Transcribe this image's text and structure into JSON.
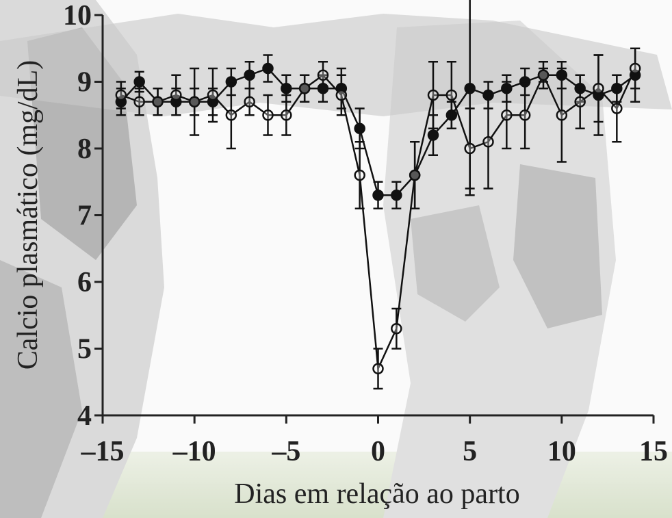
{
  "chart_data": {
    "type": "line",
    "x_label": "Dias em relação ao parto",
    "y_label": "Calcio plasmático (mg/dL)",
    "x": [
      -14,
      -13,
      -12,
      -11,
      -10,
      -9,
      -8,
      -7,
      -6,
      -5,
      -4,
      -3,
      -2,
      -1,
      0,
      1,
      2,
      3,
      4,
      5,
      6,
      7,
      8,
      9,
      10,
      11,
      12,
      13,
      14
    ],
    "series": [
      {
        "color": "#111111",
        "marker": "filled",
        "values": [
          8.7,
          9.0,
          8.7,
          8.7,
          8.7,
          8.7,
          9.0,
          9.1,
          9.2,
          8.9,
          8.9,
          8.9,
          8.9,
          8.3,
          7.3,
          7.3,
          7.6,
          8.2,
          8.5,
          8.9,
          8.8,
          8.9,
          9.0,
          9.1,
          9.1,
          8.9,
          8.8,
          8.9,
          9.1
        ],
        "errors": [
          0.2,
          0.15,
          0.2,
          0.2,
          0.2,
          0.2,
          0.2,
          0.2,
          0.2,
          0.2,
          0.2,
          0.2,
          0.3,
          0.3,
          0.2,
          0.2,
          0.5,
          0.3,
          0.2,
          1.6,
          0.2,
          0.2,
          0.2,
          0.2,
          0.2,
          0.2,
          0.6,
          0.2,
          0.4
        ]
      },
      {
        "color": "#111111",
        "marker": "open",
        "values": [
          8.8,
          8.7,
          8.7,
          8.8,
          8.7,
          8.8,
          8.5,
          8.7,
          8.5,
          8.5,
          8.9,
          9.1,
          8.8,
          7.6,
          4.7,
          5.3,
          7.6,
          8.8,
          8.8,
          8.0,
          8.1,
          8.5,
          8.5,
          9.1,
          8.5,
          8.7,
          8.9,
          8.6,
          9.2
        ],
        "errors": [
          0.2,
          0.2,
          0.2,
          0.3,
          0.5,
          0.4,
          0.5,
          0.2,
          0.3,
          0.3,
          0.2,
          0.2,
          0.3,
          0.5,
          0.3,
          0.3,
          0.5,
          0.5,
          0.5,
          0.6,
          0.7,
          0.5,
          0.5,
          0.1,
          0.7,
          0.4,
          0.5,
          0.5,
          0.3
        ]
      }
    ],
    "xlim": [
      -15,
      15
    ],
    "ylim": [
      4,
      10
    ],
    "xticks": [
      {
        "value": -15,
        "label": "–15"
      },
      {
        "value": -10,
        "label": "–10"
      },
      {
        "value": -5,
        "label": "–5"
      },
      0,
      5,
      10,
      15
    ],
    "yticks": [
      4,
      5,
      6,
      7,
      8,
      9,
      10
    ]
  }
}
